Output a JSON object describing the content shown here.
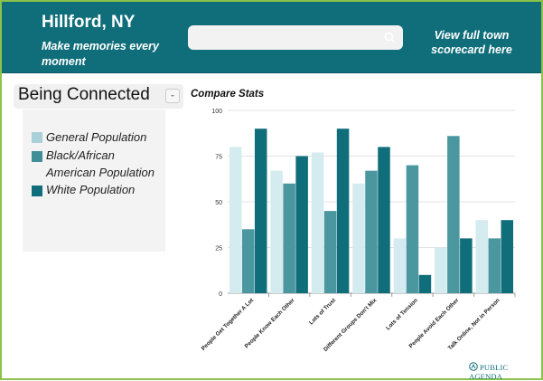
{
  "header": {
    "town": "Hillford, NY",
    "tagline": "Make memories every moment",
    "scorecard_link": "View full town scorecard here",
    "search_placeholder": ""
  },
  "selector": {
    "selected": "Being Connected"
  },
  "legend": {
    "items": [
      {
        "label": "General Population",
        "color": "#a9d0d6"
      },
      {
        "label": "Black/African American Population",
        "color": "#3f8f99"
      },
      {
        "label": "White Population",
        "color": "#0f6e7a"
      }
    ]
  },
  "chart": {
    "title": "Compare Stats"
  },
  "chart_data": {
    "type": "bar",
    "title": "Compare Stats",
    "categories": [
      "People Get Together A Lot",
      "People Know Each Other",
      "Lots of Trust",
      "Different Groups Don't Mix",
      "Lots of Tension",
      "People Avoid Each Other",
      "Talk Online, Not in Person"
    ],
    "series": [
      {
        "name": "General Population",
        "color": "#d4ebef",
        "values": [
          80,
          67,
          77,
          60,
          30,
          25,
          40
        ]
      },
      {
        "name": "Black/African American Population",
        "color": "#4a97a0",
        "values": [
          35,
          60,
          45,
          67,
          70,
          86,
          30
        ]
      },
      {
        "name": "White Population",
        "color": "#0f6e7a",
        "values": [
          90,
          75,
          90,
          80,
          10,
          30,
          40
        ]
      }
    ],
    "yticks": [
      "0",
      "25",
      "50",
      "75",
      "100"
    ],
    "ylim": [
      0,
      100
    ],
    "grid": true,
    "xlabel": "",
    "ylabel": ""
  },
  "footer": {
    "logo_text": "PUBLIC AGENDA"
  }
}
